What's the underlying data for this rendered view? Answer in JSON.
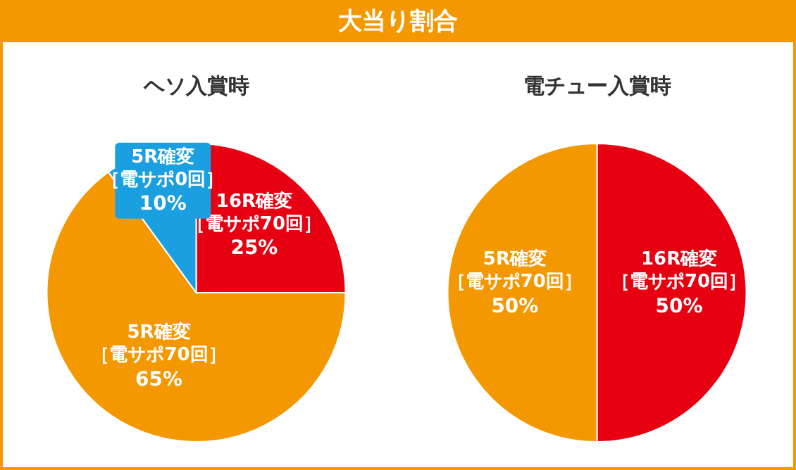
{
  "chart_data": [
    {
      "type": "pie",
      "title": "大当り割合",
      "subtitle": "ヘソ入賞時",
      "categories": [
        "16R確変［電サポ70回］",
        "5R確変［電サポ70回］",
        "5R確変［電サポ0回］"
      ],
      "values": [
        25,
        65,
        10
      ],
      "value_labels": [
        "25%",
        "65%",
        "10%"
      ],
      "colors": [
        "#e60012",
        "#f39800",
        "#1a9fe0"
      ]
    },
    {
      "type": "pie",
      "subtitle": "電チュー入賞時",
      "categories": [
        "16R確変［電サポ70回］",
        "5R確変［電サポ70回］"
      ],
      "values": [
        50,
        50
      ],
      "value_labels": [
        "50%",
        "50%"
      ],
      "colors": [
        "#e60012",
        "#f39800"
      ]
    }
  ]
}
